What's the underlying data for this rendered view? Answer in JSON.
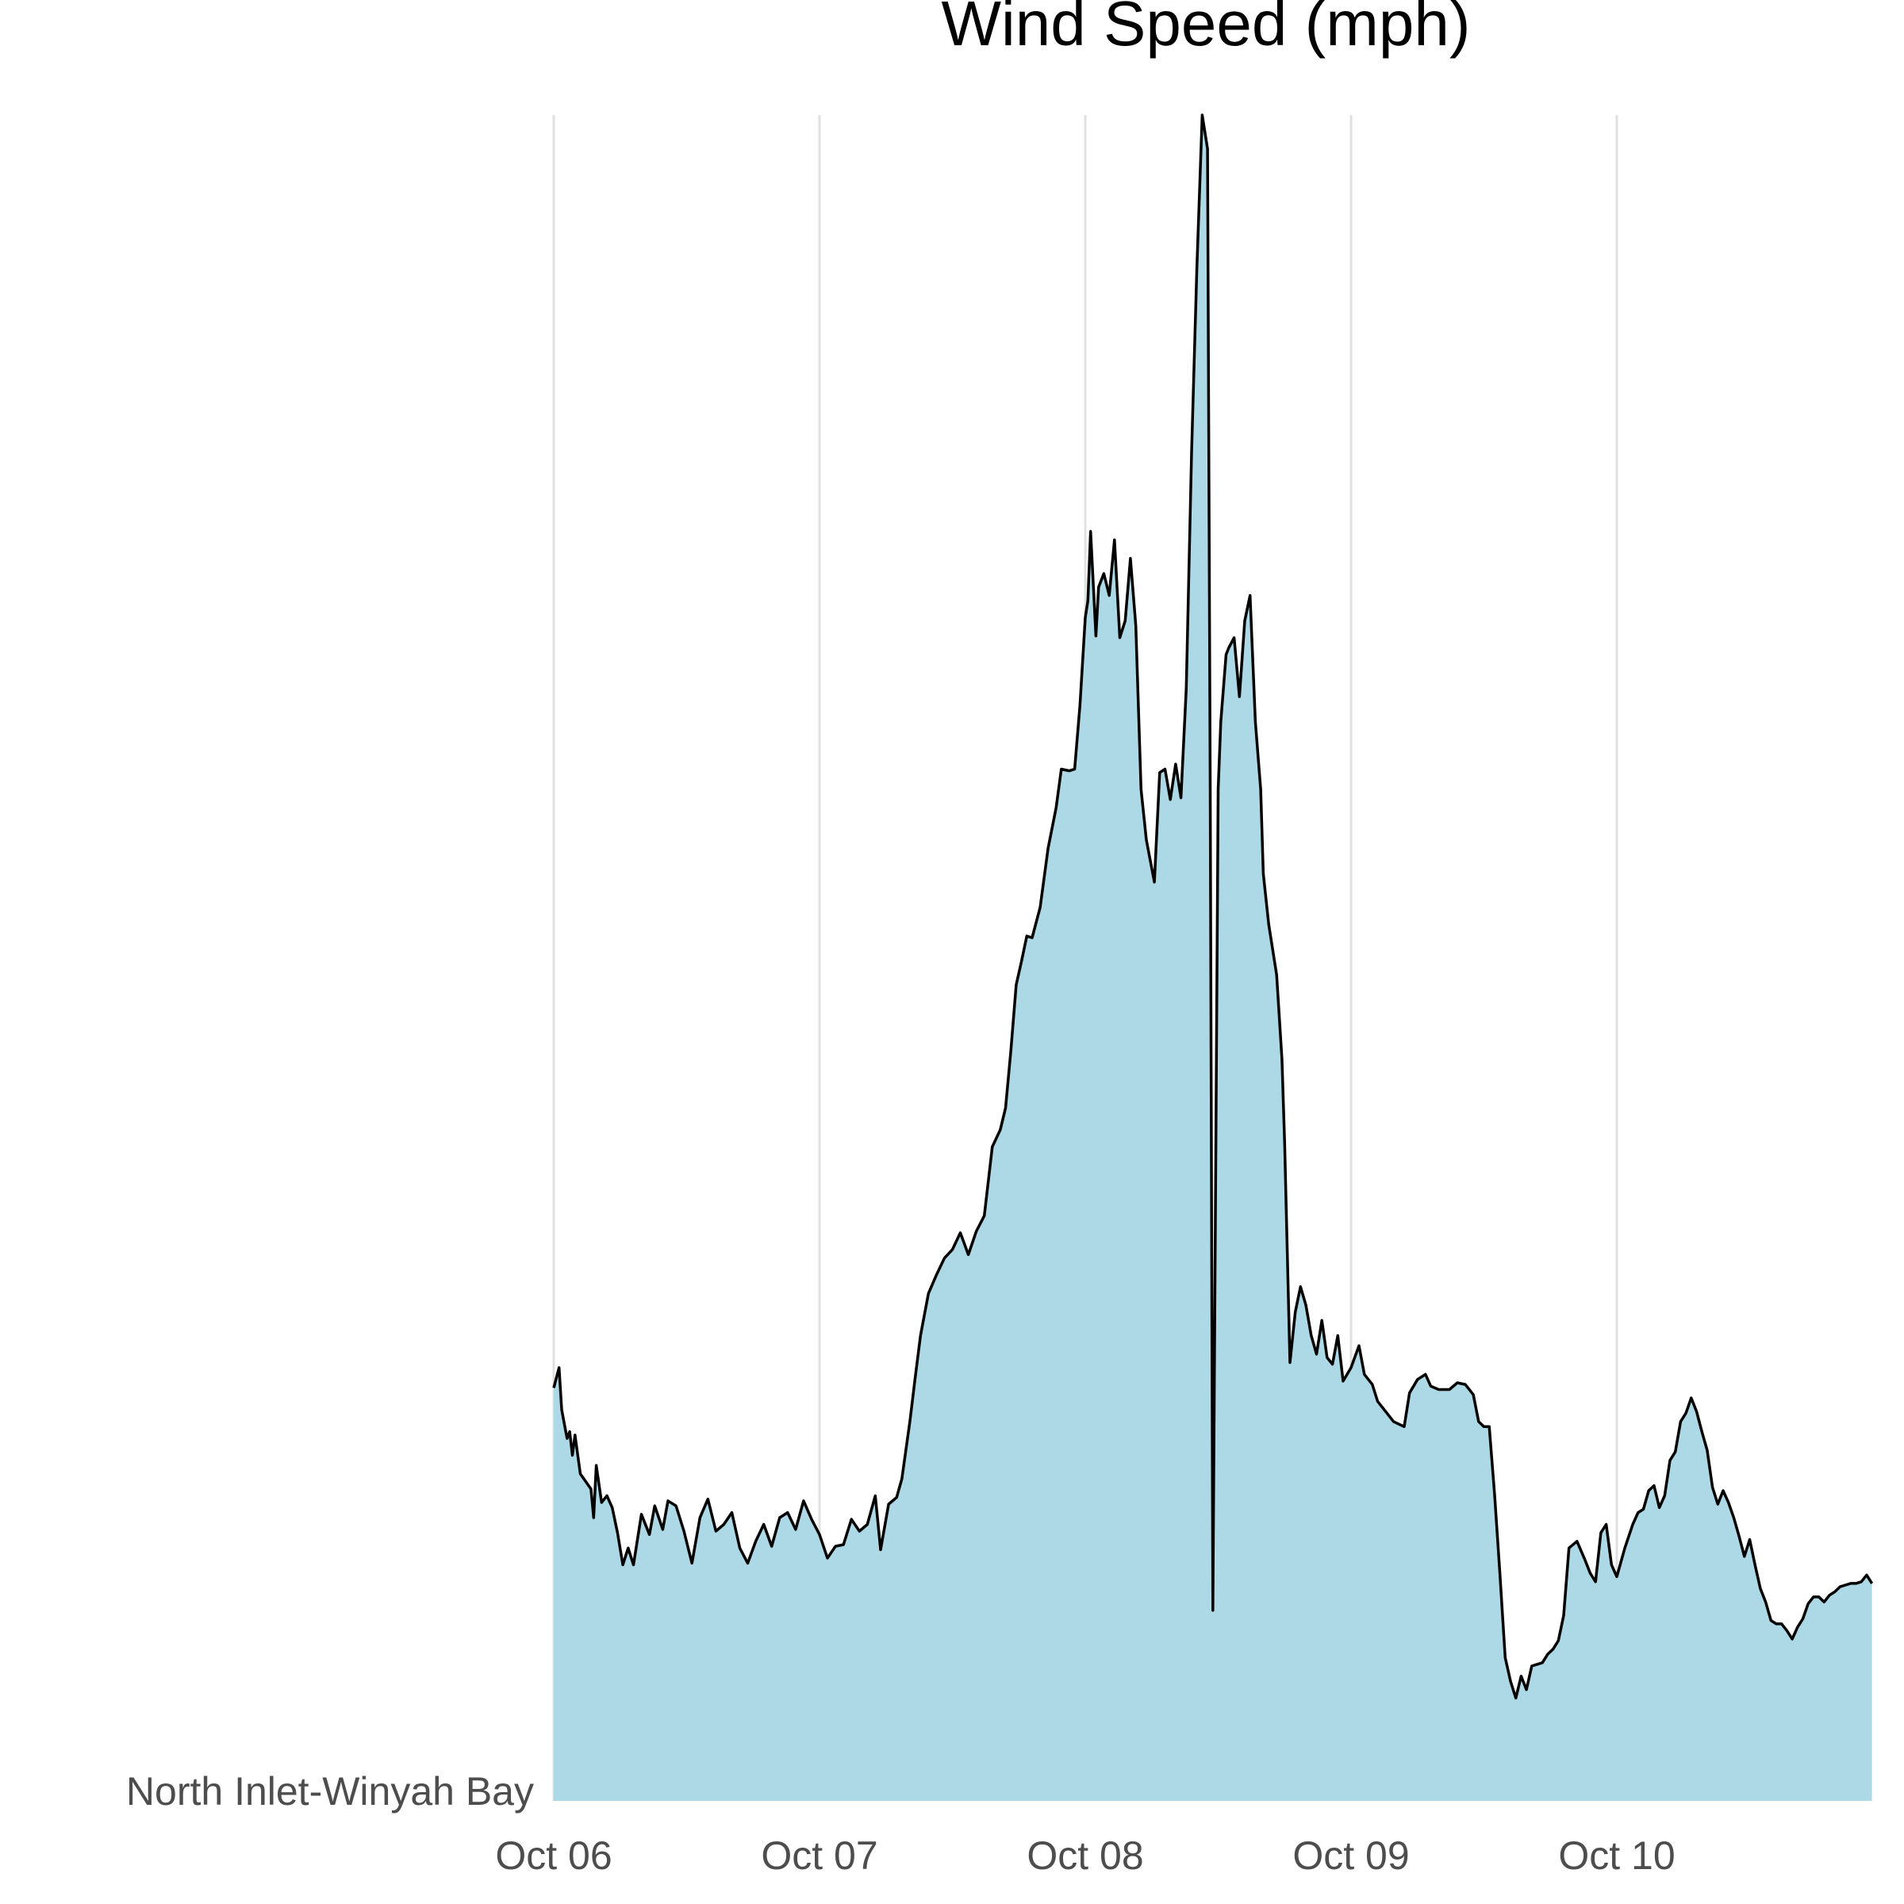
{
  "chart_data": {
    "type": "area",
    "title": "Wind Speed (mph)",
    "xlabel": "",
    "ylabel": "",
    "row_label": "North Inlet-Winyah Bay",
    "x_ticks": [
      "Oct 06",
      "Oct 07",
      "Oct 08",
      "Oct 09",
      "Oct 10"
    ],
    "xlim_days": [
      0,
      4.96
    ],
    "ylim": [
      0,
      1
    ],
    "y_ticks_shown": false,
    "grid": "vertical-major",
    "fill_color": "#add8e6",
    "line_color": "#000000",
    "series": [
      {
        "values": [
          [
            0.0,
            0.245
          ],
          [
            0.02,
            0.257
          ],
          [
            0.03,
            0.232
          ],
          [
            0.05,
            0.215
          ],
          [
            0.06,
            0.219
          ],
          [
            0.07,
            0.205
          ],
          [
            0.08,
            0.217
          ],
          [
            0.1,
            0.194
          ],
          [
            0.14,
            0.185
          ],
          [
            0.15,
            0.168
          ],
          [
            0.16,
            0.199
          ],
          [
            0.18,
            0.177
          ],
          [
            0.2,
            0.181
          ],
          [
            0.22,
            0.174
          ],
          [
            0.24,
            0.159
          ],
          [
            0.26,
            0.14
          ],
          [
            0.28,
            0.15
          ],
          [
            0.3,
            0.14
          ],
          [
            0.33,
            0.17
          ],
          [
            0.36,
            0.158
          ],
          [
            0.38,
            0.175
          ],
          [
            0.41,
            0.161
          ],
          [
            0.43,
            0.178
          ],
          [
            0.46,
            0.175
          ],
          [
            0.49,
            0.16
          ],
          [
            0.52,
            0.141
          ],
          [
            0.55,
            0.168
          ],
          [
            0.58,
            0.179
          ],
          [
            0.61,
            0.16
          ],
          [
            0.64,
            0.164
          ],
          [
            0.67,
            0.171
          ],
          [
            0.7,
            0.15
          ],
          [
            0.73,
            0.141
          ],
          [
            0.76,
            0.154
          ],
          [
            0.79,
            0.164
          ],
          [
            0.82,
            0.151
          ],
          [
            0.85,
            0.168
          ],
          [
            0.88,
            0.171
          ],
          [
            0.91,
            0.161
          ],
          [
            0.94,
            0.178
          ],
          [
            0.97,
            0.167
          ],
          [
            1.0,
            0.158
          ],
          [
            1.03,
            0.144
          ],
          [
            1.06,
            0.151
          ],
          [
            1.09,
            0.152
          ],
          [
            1.12,
            0.167
          ],
          [
            1.15,
            0.16
          ],
          [
            1.18,
            0.164
          ],
          [
            1.21,
            0.181
          ],
          [
            1.23,
            0.149
          ],
          [
            1.26,
            0.176
          ],
          [
            1.29,
            0.18
          ],
          [
            1.31,
            0.191
          ],
          [
            1.34,
            0.225
          ],
          [
            1.36,
            0.251
          ],
          [
            1.38,
            0.276
          ],
          [
            1.41,
            0.301
          ],
          [
            1.44,
            0.312
          ],
          [
            1.47,
            0.322
          ],
          [
            1.5,
            0.327
          ],
          [
            1.53,
            0.337
          ],
          [
            1.56,
            0.324
          ],
          [
            1.59,
            0.338
          ],
          [
            1.62,
            0.347
          ],
          [
            1.65,
            0.388
          ],
          [
            1.68,
            0.398
          ],
          [
            1.7,
            0.411
          ],
          [
            1.72,
            0.445
          ],
          [
            1.74,
            0.484
          ],
          [
            1.76,
            0.498
          ],
          [
            1.78,
            0.513
          ],
          [
            1.8,
            0.512
          ],
          [
            1.83,
            0.53
          ],
          [
            1.86,
            0.565
          ],
          [
            1.89,
            0.589
          ],
          [
            1.91,
            0.612
          ],
          [
            1.94,
            0.611
          ],
          [
            1.96,
            0.612
          ],
          [
            1.98,
            0.65
          ],
          [
            2.0,
            0.702
          ],
          [
            2.01,
            0.712
          ],
          [
            2.02,
            0.753
          ],
          [
            2.04,
            0.691
          ],
          [
            2.05,
            0.72
          ],
          [
            2.07,
            0.728
          ],
          [
            2.09,
            0.715
          ],
          [
            2.11,
            0.748
          ],
          [
            2.13,
            0.69
          ],
          [
            2.15,
            0.7
          ],
          [
            2.17,
            0.737
          ],
          [
            2.19,
            0.697
          ],
          [
            2.21,
            0.6
          ],
          [
            2.23,
            0.57
          ],
          [
            2.26,
            0.545
          ],
          [
            2.28,
            0.61
          ],
          [
            2.3,
            0.612
          ],
          [
            2.32,
            0.594
          ],
          [
            2.34,
            0.615
          ],
          [
            2.36,
            0.595
          ],
          [
            2.38,
            0.66
          ],
          [
            2.4,
            0.8
          ],
          [
            2.42,
            0.91
          ],
          [
            2.44,
            1.0
          ],
          [
            2.46,
            0.98
          ],
          [
            2.47,
            0.6
          ],
          [
            2.48,
            0.113
          ],
          [
            2.5,
            0.6
          ],
          [
            2.51,
            0.64
          ],
          [
            2.53,
            0.68
          ],
          [
            2.54,
            0.684
          ],
          [
            2.56,
            0.69
          ],
          [
            2.58,
            0.655
          ],
          [
            2.6,
            0.7
          ],
          [
            2.62,
            0.715
          ],
          [
            2.64,
            0.64
          ],
          [
            2.66,
            0.6
          ],
          [
            2.67,
            0.55
          ],
          [
            2.69,
            0.52
          ],
          [
            2.72,
            0.49
          ],
          [
            2.74,
            0.44
          ],
          [
            2.75,
            0.39
          ],
          [
            2.77,
            0.26
          ],
          [
            2.79,
            0.29
          ],
          [
            2.81,
            0.305
          ],
          [
            2.83,
            0.294
          ],
          [
            2.85,
            0.276
          ],
          [
            2.87,
            0.265
          ],
          [
            2.89,
            0.285
          ],
          [
            2.91,
            0.263
          ],
          [
            2.93,
            0.259
          ],
          [
            2.95,
            0.276
          ],
          [
            2.97,
            0.249
          ],
          [
            3.0,
            0.257
          ],
          [
            3.03,
            0.27
          ],
          [
            3.05,
            0.253
          ],
          [
            3.08,
            0.247
          ],
          [
            3.1,
            0.237
          ],
          [
            3.13,
            0.231
          ],
          [
            3.16,
            0.225
          ],
          [
            3.2,
            0.222
          ],
          [
            3.22,
            0.242
          ],
          [
            3.25,
            0.25
          ],
          [
            3.28,
            0.253
          ],
          [
            3.3,
            0.246
          ],
          [
            3.33,
            0.244
          ],
          [
            3.37,
            0.244
          ],
          [
            3.4,
            0.248
          ],
          [
            3.43,
            0.247
          ],
          [
            3.46,
            0.241
          ],
          [
            3.48,
            0.225
          ],
          [
            3.5,
            0.222
          ],
          [
            3.52,
            0.222
          ],
          [
            3.54,
            0.182
          ],
          [
            3.56,
            0.135
          ],
          [
            3.58,
            0.085
          ],
          [
            3.6,
            0.071
          ],
          [
            3.62,
            0.061
          ],
          [
            3.64,
            0.074
          ],
          [
            3.66,
            0.066
          ],
          [
            3.68,
            0.08
          ],
          [
            3.7,
            0.081
          ],
          [
            3.72,
            0.082
          ],
          [
            3.74,
            0.087
          ],
          [
            3.76,
            0.09
          ],
          [
            3.78,
            0.095
          ],
          [
            3.8,
            0.11
          ],
          [
            3.82,
            0.15
          ],
          [
            3.85,
            0.154
          ],
          [
            3.88,
            0.143
          ],
          [
            3.9,
            0.135
          ],
          [
            3.92,
            0.13
          ],
          [
            3.94,
            0.159
          ],
          [
            3.96,
            0.164
          ],
          [
            3.98,
            0.14
          ],
          [
            4.0,
            0.133
          ],
          [
            4.03,
            0.15
          ],
          [
            4.06,
            0.164
          ],
          [
            4.08,
            0.171
          ],
          [
            4.1,
            0.173
          ],
          [
            4.12,
            0.184
          ],
          [
            4.14,
            0.187
          ],
          [
            4.16,
            0.174
          ],
          [
            4.18,
            0.181
          ],
          [
            4.2,
            0.202
          ],
          [
            4.22,
            0.207
          ],
          [
            4.24,
            0.225
          ],
          [
            4.26,
            0.23
          ],
          [
            4.28,
            0.239
          ],
          [
            4.3,
            0.231
          ],
          [
            4.32,
            0.219
          ],
          [
            4.34,
            0.208
          ],
          [
            4.36,
            0.186
          ],
          [
            4.38,
            0.176
          ],
          [
            4.4,
            0.184
          ],
          [
            4.42,
            0.177
          ],
          [
            4.44,
            0.168
          ],
          [
            4.46,
            0.157
          ],
          [
            4.48,
            0.145
          ],
          [
            4.5,
            0.155
          ],
          [
            4.52,
            0.14
          ],
          [
            4.54,
            0.126
          ],
          [
            4.56,
            0.118
          ],
          [
            4.58,
            0.107
          ],
          [
            4.6,
            0.105
          ],
          [
            4.62,
            0.105
          ],
          [
            4.64,
            0.101
          ],
          [
            4.66,
            0.096
          ],
          [
            4.68,
            0.103
          ],
          [
            4.7,
            0.108
          ],
          [
            4.72,
            0.117
          ],
          [
            4.74,
            0.121
          ],
          [
            4.76,
            0.121
          ],
          [
            4.78,
            0.118
          ],
          [
            4.8,
            0.122
          ],
          [
            4.82,
            0.124
          ],
          [
            4.84,
            0.127
          ],
          [
            4.86,
            0.128
          ],
          [
            4.88,
            0.129
          ],
          [
            4.9,
            0.129
          ],
          [
            4.92,
            0.13
          ],
          [
            4.94,
            0.134
          ],
          [
            4.96,
            0.129
          ]
        ]
      }
    ]
  }
}
